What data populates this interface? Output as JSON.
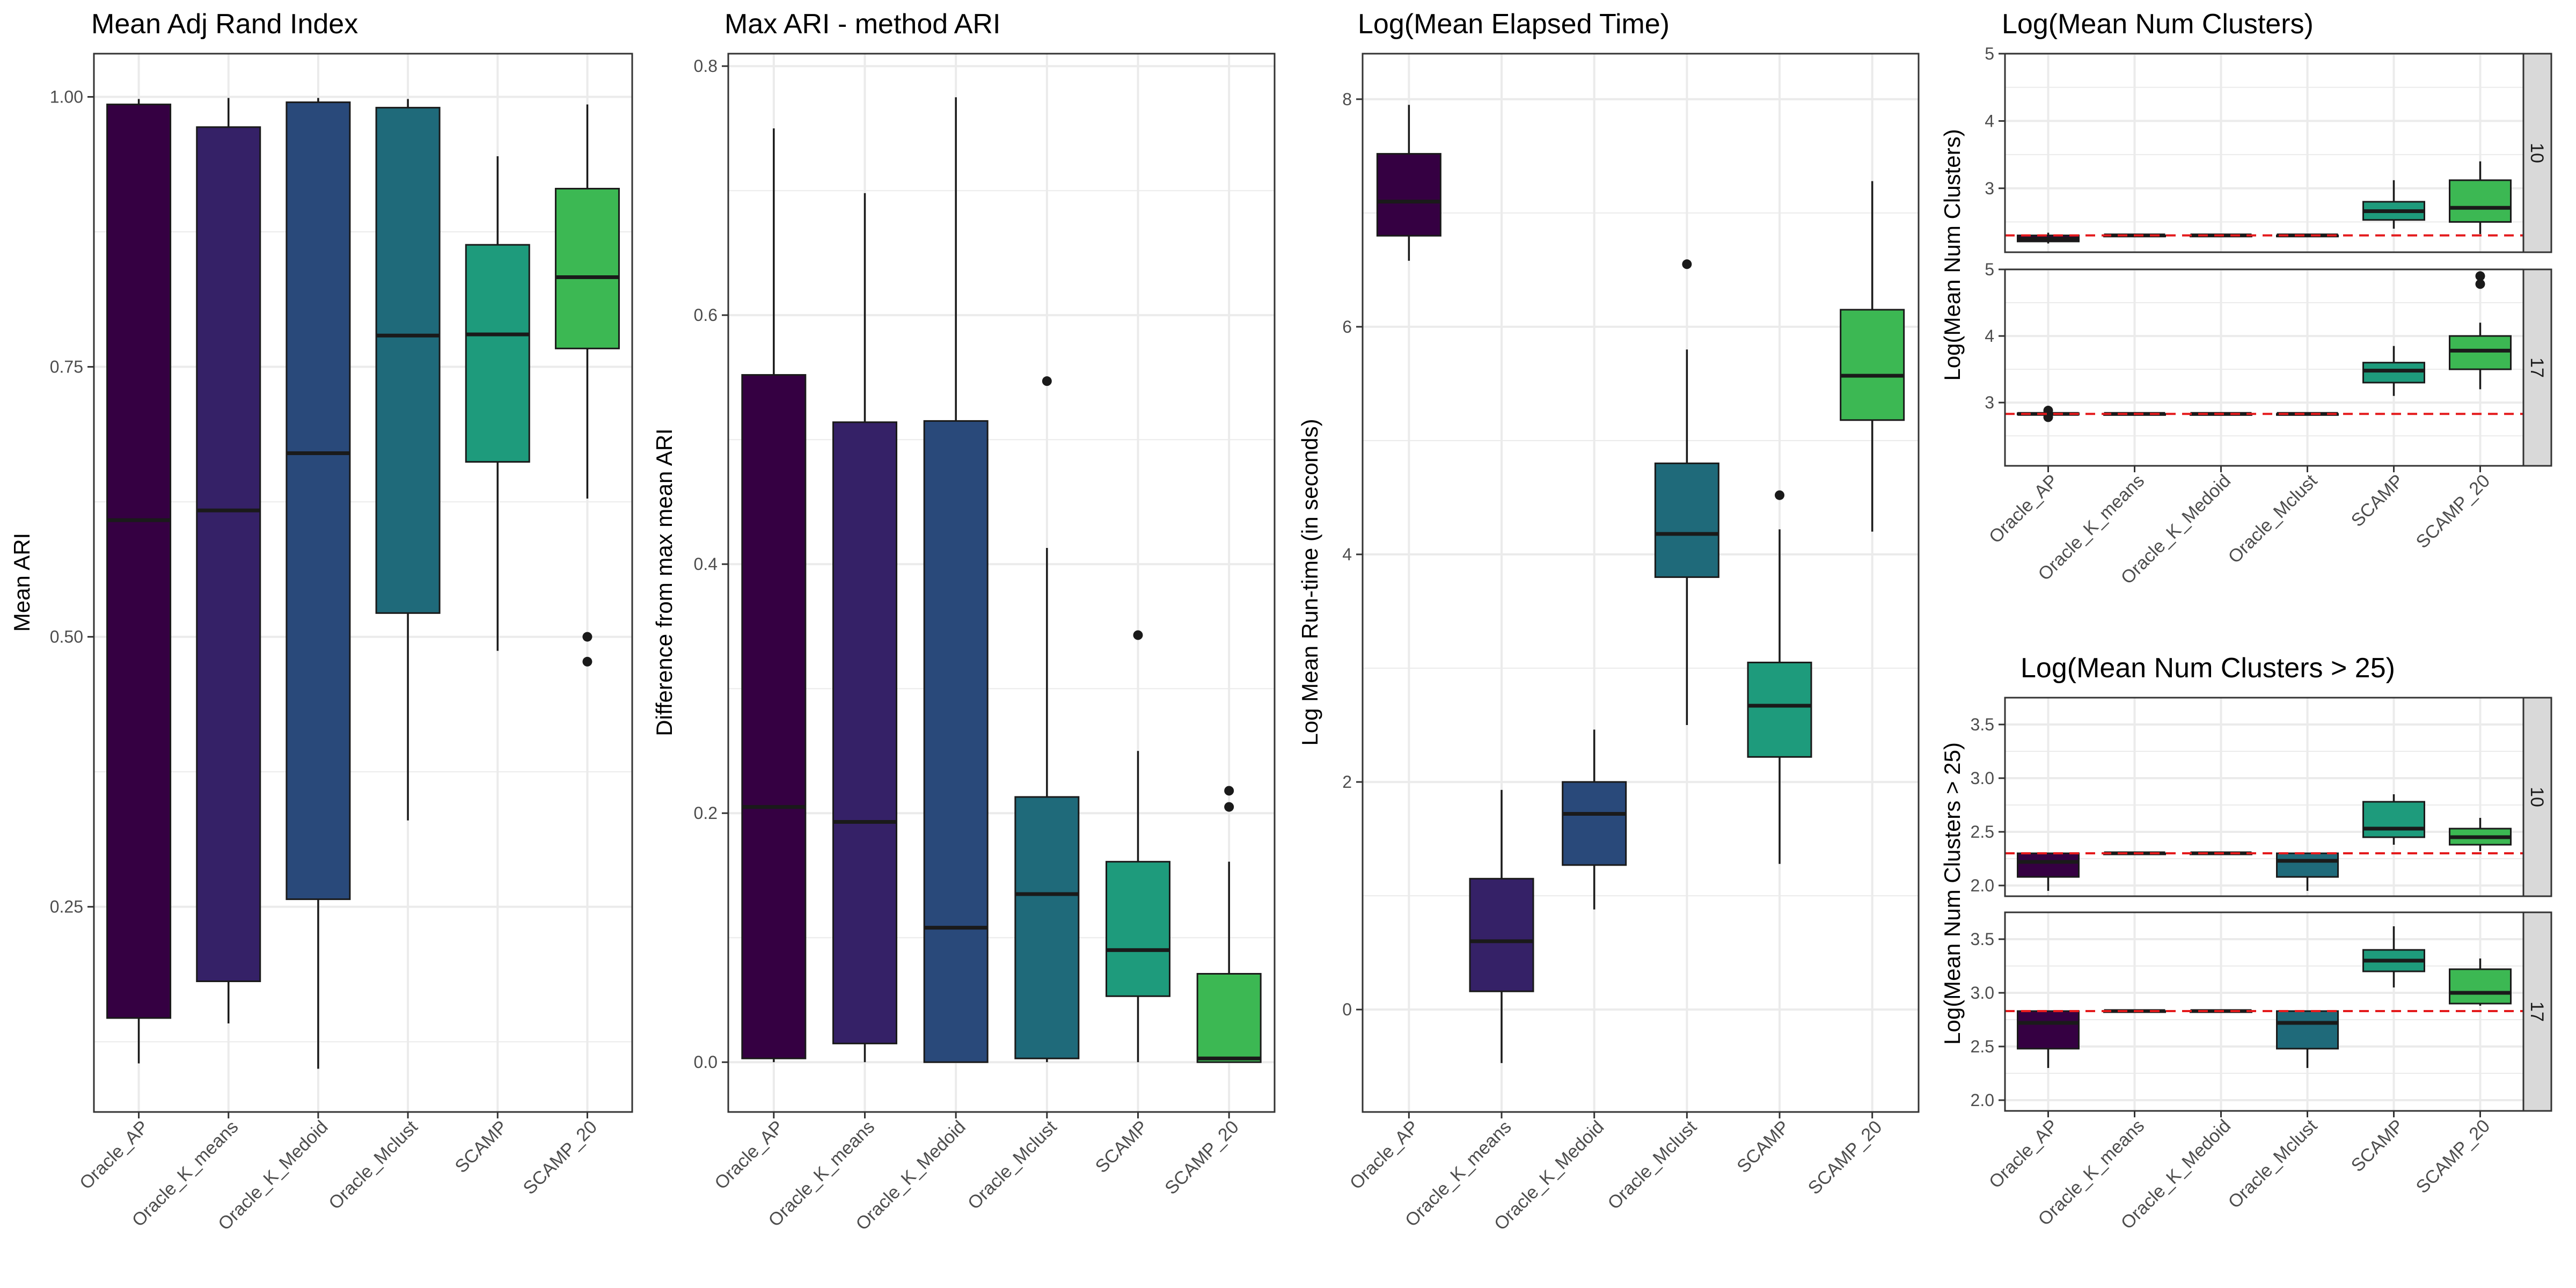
{
  "figure": {
    "fill_colors": [
      "#350042",
      "#352167",
      "#29497a",
      "#1f6a7a",
      "#1e9b7c",
      "#3cb853"
    ],
    "grid_color": "#ebebeb",
    "strip_fill": "#d9d9d9",
    "reference_line_color": "#e41a1c"
  },
  "chart_data": [
    {
      "id": "ari",
      "type": "boxplot",
      "title": "Mean Adj Rand Index",
      "ylabel": "Mean ARI",
      "ylim": [
        0.06,
        1.04
      ],
      "yticks": [
        0.25,
        0.5,
        0.75,
        1.0
      ],
      "ytick_labels": [
        "0.25",
        "0.50",
        "0.75",
        "1.00"
      ],
      "categories": [
        "Oracle_AP",
        "Oracle_K_means",
        "Oracle_K_Medoid",
        "Oracle_Mclust",
        "SCAMP",
        "SCAMP_20"
      ],
      "boxes": [
        {
          "lower": 0.105,
          "q1": 0.147,
          "median": 0.608,
          "q3": 0.993,
          "upper": 0.998,
          "outliers": []
        },
        {
          "lower": 0.142,
          "q1": 0.181,
          "median": 0.617,
          "q3": 0.972,
          "upper": 0.999,
          "outliers": []
        },
        {
          "lower": 0.1,
          "q1": 0.257,
          "median": 0.67,
          "q3": 0.995,
          "upper": 0.999,
          "outliers": []
        },
        {
          "lower": 0.33,
          "q1": 0.522,
          "median": 0.779,
          "q3": 0.99,
          "upper": 0.998,
          "outliers": []
        },
        {
          "lower": 0.487,
          "q1": 0.662,
          "median": 0.78,
          "q3": 0.863,
          "upper": 0.945,
          "outliers": []
        },
        {
          "lower": 0.628,
          "q1": 0.767,
          "median": 0.833,
          "q3": 0.915,
          "upper": 0.993,
          "outliers": [
            0.5,
            0.477
          ]
        }
      ]
    },
    {
      "id": "diff",
      "type": "boxplot",
      "title": "Max ARI - method ARI",
      "ylabel": "Difference from max mean ARI",
      "ylim": [
        -0.04,
        0.81
      ],
      "yticks": [
        0.0,
        0.2,
        0.4,
        0.6,
        0.8
      ],
      "ytick_labels": [
        "0.0",
        "0.2",
        "0.4",
        "0.6",
        "0.8"
      ],
      "categories": [
        "Oracle_AP",
        "Oracle_K_means",
        "Oracle_K_Medoid",
        "Oracle_Mclust",
        "SCAMP",
        "SCAMP_20"
      ],
      "boxes": [
        {
          "lower": 0.0,
          "q1": 0.003,
          "median": 0.205,
          "q3": 0.552,
          "upper": 0.75,
          "outliers": []
        },
        {
          "lower": 0.0,
          "q1": 0.015,
          "median": 0.193,
          "q3": 0.514,
          "upper": 0.698,
          "outliers": []
        },
        {
          "lower": 0.0,
          "q1": 0.0,
          "median": 0.108,
          "q3": 0.515,
          "upper": 0.775,
          "outliers": []
        },
        {
          "lower": 0.0,
          "q1": 0.003,
          "median": 0.135,
          "q3": 0.213,
          "upper": 0.413,
          "outliers": [
            0.547
          ]
        },
        {
          "lower": 0.0,
          "q1": 0.053,
          "median": 0.09,
          "q3": 0.161,
          "upper": 0.25,
          "outliers": [
            0.343
          ]
        },
        {
          "lower": 0.0,
          "q1": 0.0,
          "median": 0.003,
          "q3": 0.071,
          "upper": 0.161,
          "outliers": [
            0.218,
            0.205
          ]
        }
      ]
    },
    {
      "id": "time",
      "type": "boxplot",
      "title": "Log(Mean Elapsed Time)",
      "ylabel": "Log Mean Run-time (in seconds)",
      "ylim": [
        -0.9,
        8.4
      ],
      "yticks": [
        0,
        2,
        4,
        6,
        8
      ],
      "ytick_labels": [
        "0",
        "2",
        "4",
        "6",
        "8"
      ],
      "categories": [
        "Oracle_AP",
        "Oracle_K_means",
        "Oracle_K_Medoid",
        "Oracle_Mclust",
        "SCAMP",
        "SCAMP_20"
      ],
      "boxes": [
        {
          "lower": 6.58,
          "q1": 6.8,
          "median": 7.1,
          "q3": 7.52,
          "upper": 7.95,
          "outliers": []
        },
        {
          "lower": -0.47,
          "q1": 0.16,
          "median": 0.6,
          "q3": 1.15,
          "upper": 1.93,
          "outliers": []
        },
        {
          "lower": 0.88,
          "q1": 1.27,
          "median": 1.72,
          "q3": 2.0,
          "upper": 2.46,
          "outliers": []
        },
        {
          "lower": 2.5,
          "q1": 3.8,
          "median": 4.18,
          "q3": 4.8,
          "upper": 5.8,
          "outliers": [
            6.55
          ]
        },
        {
          "lower": 1.28,
          "q1": 2.22,
          "median": 2.67,
          "q3": 3.05,
          "upper": 4.22,
          "outliers": [
            4.52
          ]
        },
        {
          "lower": 4.2,
          "q1": 5.18,
          "median": 5.57,
          "q3": 6.15,
          "upper": 7.28,
          "outliers": []
        }
      ]
    },
    {
      "id": "nclust",
      "type": "boxplot",
      "title": "Log(Mean Num Clusters)",
      "ylabel": "Log(Mean Num Clusters)",
      "ylim": [
        2.05,
        5.0
      ],
      "yticks": [
        3,
        4,
        5
      ],
      "ytick_labels": [
        "3",
        "4",
        "5"
      ],
      "categories": [
        "Oracle_AP",
        "Oracle_K_means",
        "Oracle_K_Medoid",
        "Oracle_Mclust",
        "SCAMP",
        "SCAMP_20"
      ],
      "facets": [
        {
          "label": "10",
          "reference": 2.3,
          "boxes": [
            {
              "lower": 2.18,
              "q1": 2.21,
              "median": 2.25,
              "q3": 2.3,
              "upper": 2.34,
              "outliers": []
            },
            {
              "lower": 2.3,
              "q1": 2.3,
              "median": 2.3,
              "q3": 2.3,
              "upper": 2.3,
              "outliers": []
            },
            {
              "lower": 2.3,
              "q1": 2.3,
              "median": 2.3,
              "q3": 2.3,
              "upper": 2.3,
              "outliers": []
            },
            {
              "lower": 2.3,
              "q1": 2.3,
              "median": 2.3,
              "q3": 2.3,
              "upper": 2.3,
              "outliers": []
            },
            {
              "lower": 2.4,
              "q1": 2.53,
              "median": 2.66,
              "q3": 2.8,
              "upper": 3.12,
              "outliers": []
            },
            {
              "lower": 2.32,
              "q1": 2.5,
              "median": 2.71,
              "q3": 3.12,
              "upper": 3.4,
              "outliers": []
            }
          ]
        },
        {
          "label": "17",
          "reference": 2.83,
          "boxes": [
            {
              "lower": 2.8,
              "q1": 2.82,
              "median": 2.83,
              "q3": 2.84,
              "upper": 2.86,
              "outliers": [
                2.88,
                2.78
              ]
            },
            {
              "lower": 2.83,
              "q1": 2.83,
              "median": 2.83,
              "q3": 2.83,
              "upper": 2.83,
              "outliers": []
            },
            {
              "lower": 2.83,
              "q1": 2.83,
              "median": 2.83,
              "q3": 2.83,
              "upper": 2.83,
              "outliers": []
            },
            {
              "lower": 2.83,
              "q1": 2.83,
              "median": 2.83,
              "q3": 2.83,
              "upper": 2.83,
              "outliers": []
            },
            {
              "lower": 3.1,
              "q1": 3.3,
              "median": 3.48,
              "q3": 3.6,
              "upper": 3.85,
              "outliers": []
            },
            {
              "lower": 3.2,
              "q1": 3.5,
              "median": 3.78,
              "q3": 4.0,
              "upper": 4.2,
              "outliers": [
                4.78,
                4.9
              ]
            }
          ]
        }
      ]
    },
    {
      "id": "nclust25",
      "type": "boxplot",
      "title": "Log(Mean Num Clusters > 25)",
      "ylabel": "Log(Mean Num Clusters > 25)",
      "ylim": [
        1.9,
        3.75
      ],
      "yticks": [
        2.0,
        2.5,
        3.0,
        3.5
      ],
      "ytick_labels": [
        "2.0",
        "2.5",
        "3.0",
        "3.5"
      ],
      "categories": [
        "Oracle_AP",
        "Oracle_K_means",
        "Oracle_K_Medoid",
        "Oracle_Mclust",
        "SCAMP",
        "SCAMP_20"
      ],
      "facets": [
        {
          "label": "10",
          "reference": 2.3,
          "boxes": [
            {
              "lower": 1.95,
              "q1": 2.08,
              "median": 2.22,
              "q3": 2.3,
              "upper": 2.3,
              "outliers": []
            },
            {
              "lower": 2.3,
              "q1": 2.3,
              "median": 2.3,
              "q3": 2.3,
              "upper": 2.3,
              "outliers": []
            },
            {
              "lower": 2.3,
              "q1": 2.3,
              "median": 2.3,
              "q3": 2.3,
              "upper": 2.3,
              "outliers": []
            },
            {
              "lower": 1.95,
              "q1": 2.08,
              "median": 2.23,
              "q3": 2.3,
              "upper": 2.3,
              "outliers": []
            },
            {
              "lower": 2.38,
              "q1": 2.45,
              "median": 2.53,
              "q3": 2.78,
              "upper": 2.85,
              "outliers": []
            },
            {
              "lower": 2.32,
              "q1": 2.38,
              "median": 2.45,
              "q3": 2.53,
              "upper": 2.63,
              "outliers": []
            }
          ]
        },
        {
          "label": "17",
          "reference": 2.83,
          "boxes": [
            {
              "lower": 2.3,
              "q1": 2.48,
              "median": 2.72,
              "q3": 2.83,
              "upper": 2.83,
              "outliers": []
            },
            {
              "lower": 2.83,
              "q1": 2.83,
              "median": 2.83,
              "q3": 2.83,
              "upper": 2.83,
              "outliers": []
            },
            {
              "lower": 2.83,
              "q1": 2.83,
              "median": 2.83,
              "q3": 2.83,
              "upper": 2.83,
              "outliers": []
            },
            {
              "lower": 2.3,
              "q1": 2.48,
              "median": 2.72,
              "q3": 2.83,
              "upper": 2.83,
              "outliers": []
            },
            {
              "lower": 3.05,
              "q1": 3.2,
              "median": 3.3,
              "q3": 3.4,
              "upper": 3.62,
              "outliers": []
            },
            {
              "lower": 2.88,
              "q1": 2.9,
              "median": 3.0,
              "q3": 3.22,
              "upper": 3.32,
              "outliers": []
            }
          ]
        }
      ]
    }
  ]
}
